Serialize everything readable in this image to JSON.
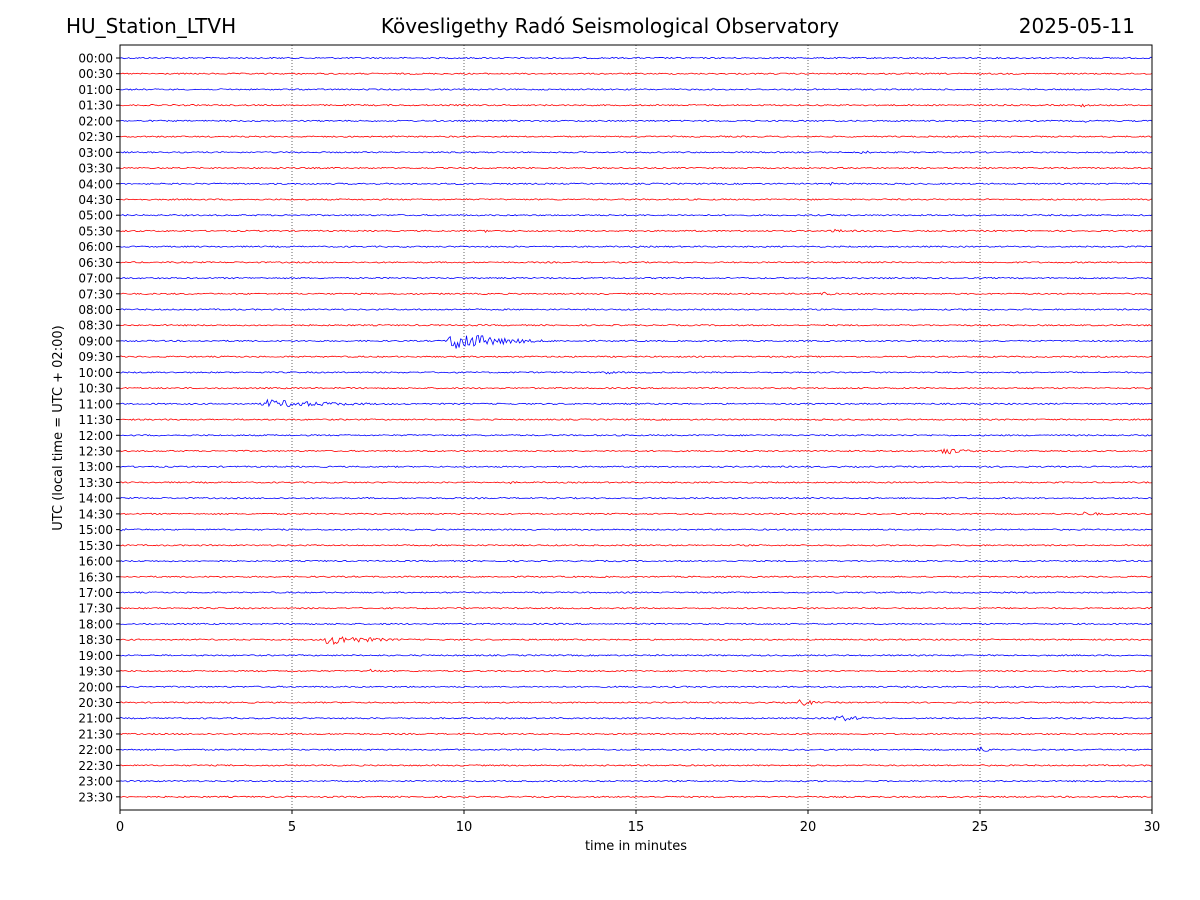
{
  "header": {
    "station": "HU_Station_LTVH",
    "observatory": "Kövesligethy Radó Seismological Observatory",
    "date": "2025-05-11"
  },
  "chart_data": {
    "type": "line",
    "xlabel": "time in minutes",
    "ylabel": "UTC (local time = UTC + 02:00)",
    "xlim": [
      0,
      30
    ],
    "x_ticks": [
      0,
      5,
      10,
      15,
      20,
      25,
      30
    ],
    "vertical_grid": "dotted at every 5 minutes",
    "row_labels": [
      "00:00",
      "00:30",
      "01:00",
      "01:30",
      "02:00",
      "02:30",
      "03:00",
      "03:30",
      "04:00",
      "04:30",
      "05:00",
      "05:30",
      "06:00",
      "06:30",
      "07:00",
      "07:30",
      "08:00",
      "08:30",
      "09:00",
      "09:30",
      "10:00",
      "10:30",
      "11:00",
      "11:30",
      "12:00",
      "12:30",
      "13:00",
      "13:30",
      "14:00",
      "14:30",
      "15:00",
      "15:30",
      "16:00",
      "16:30",
      "17:00",
      "17:30",
      "18:00",
      "18:30",
      "19:00",
      "19:30",
      "20:00",
      "20:30",
      "21:00",
      "21:30",
      "22:00",
      "22:30",
      "23:00",
      "23:30"
    ],
    "trace_colors": [
      "#0000ff",
      "#ff0000"
    ],
    "notable_events": [
      {
        "row": "01:00",
        "start": 8.7,
        "duration": 0.1,
        "amplitude": 3
      },
      {
        "row": "01:30",
        "start": 27.9,
        "duration": 0.8,
        "amplitude": 3
      },
      {
        "row": "02:00",
        "start": 28.0,
        "duration": 0.7,
        "amplitude": 2
      },
      {
        "row": "03:00",
        "start": 21.5,
        "duration": 0.8,
        "amplitude": 3
      },
      {
        "row": "03:30",
        "start": 4.5,
        "duration": 0.8,
        "amplitude": 2
      },
      {
        "row": "04:00",
        "start": 20.6,
        "duration": 0.8,
        "amplitude": 2
      },
      {
        "row": "05:30",
        "start": 10.5,
        "duration": 1.2,
        "amplitude": 2
      },
      {
        "row": "05:30",
        "start": 20.6,
        "duration": 2.5,
        "amplitude": 2
      },
      {
        "row": "07:30",
        "start": 20.3,
        "duration": 1.2,
        "amplitude": 3
      },
      {
        "row": "09:00",
        "start": 9.5,
        "duration": 3.5,
        "amplitude": 13
      },
      {
        "row": "10:00",
        "start": 14.0,
        "duration": 1.2,
        "amplitude": 3
      },
      {
        "row": "11:00",
        "start": 4.0,
        "duration": 6.0,
        "amplitude": 5
      },
      {
        "row": "12:30",
        "start": 23.8,
        "duration": 1.8,
        "amplitude": 5
      },
      {
        "row": "13:30",
        "start": 11.3,
        "duration": 0.5,
        "amplitude": 2
      },
      {
        "row": "14:30",
        "start": 27.8,
        "duration": 2.2,
        "amplitude": 3
      },
      {
        "row": "15:00",
        "start": 0.0,
        "duration": 0.5,
        "amplitude": 4
      },
      {
        "row": "18:30",
        "start": 5.9,
        "duration": 3.3,
        "amplitude": 7
      },
      {
        "row": "19:30",
        "start": 7.2,
        "duration": 1.0,
        "amplitude": 3
      },
      {
        "row": "20:30",
        "start": 19.7,
        "duration": 1.2,
        "amplitude": 5
      },
      {
        "row": "21:00",
        "start": 20.7,
        "duration": 2.5,
        "amplitude": 4
      },
      {
        "row": "22:00",
        "start": 24.8,
        "duration": 1.2,
        "amplitude": 5
      }
    ]
  }
}
